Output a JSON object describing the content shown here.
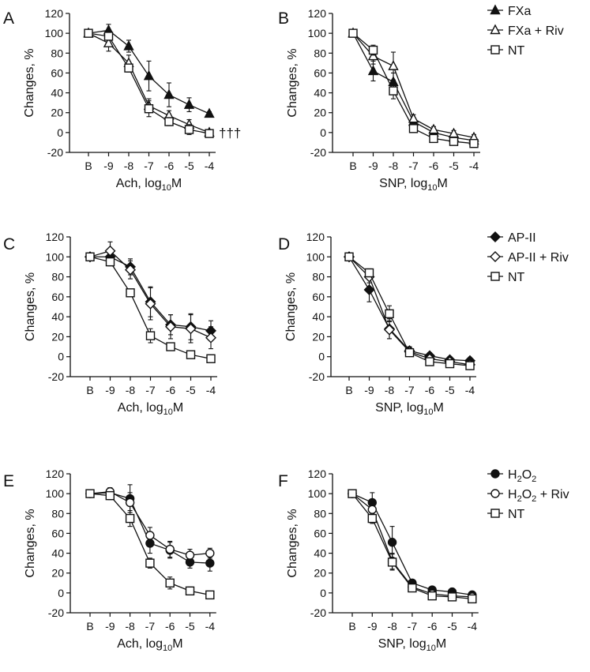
{
  "figure": {
    "x_categories": [
      "B",
      "-9",
      "-8",
      "-7",
      "-6",
      "-5",
      "-4"
    ],
    "y_ticks": [
      -20,
      0,
      20,
      40,
      60,
      80,
      100,
      120
    ],
    "ylim": [
      -20,
      120
    ],
    "ylabel": "Changes, %"
  },
  "legends": [
    {
      "for_row": 0,
      "entries": [
        {
          "label": "FXa",
          "marker": "triangle-filled"
        },
        {
          "label": "FXa + Riv",
          "marker": "triangle-open"
        },
        {
          "label": "NT",
          "marker": "square-open"
        }
      ]
    },
    {
      "for_row": 1,
      "entries": [
        {
          "label": "AP-II",
          "marker": "diamond-filled"
        },
        {
          "label": "AP-II + Riv",
          "marker": "diamond-open"
        },
        {
          "label": "NT",
          "marker": "square-open"
        }
      ]
    },
    {
      "for_row": 2,
      "entries": [
        {
          "label": "H",
          "sub": "2",
          "mid": "O",
          "sub2": "2",
          "rest": "",
          "marker": "circle-filled"
        },
        {
          "label": "H",
          "sub": "2",
          "mid": "O",
          "sub2": "2",
          "rest": " + Riv",
          "marker": "circle-open"
        },
        {
          "label": "NT",
          "marker": "square-open"
        }
      ]
    }
  ],
  "chart_data": [
    {
      "panel": "A",
      "type": "line",
      "xlabel": "Ach, log10M",
      "xlabel_main": "Ach, log",
      "xlabel_sub": "10",
      "xlabel_tail": "M",
      "annotation": "†††",
      "categories": [
        "B",
        "-9",
        "-8",
        "-7",
        "-6",
        "-5",
        "-4"
      ],
      "series": [
        {
          "name": "FXa",
          "marker": "triangle-filled",
          "values": [
            100,
            103,
            87,
            57,
            38,
            28,
            19
          ],
          "err": [
            0,
            6,
            6,
            15,
            12,
            7,
            2
          ]
        },
        {
          "name": "FXa + Riv",
          "marker": "triangle-open",
          "values": [
            100,
            90,
            70,
            27,
            17,
            8,
            0
          ],
          "err": [
            0,
            8,
            8,
            7,
            5,
            5,
            3
          ]
        },
        {
          "name": "NT",
          "marker": "square-open",
          "values": [
            100,
            97,
            65,
            24,
            11,
            3,
            -1
          ],
          "err": [
            0,
            3,
            4,
            8,
            4,
            5,
            3
          ]
        }
      ]
    },
    {
      "panel": "B",
      "type": "line",
      "xlabel": "SNP, log10M",
      "xlabel_main": "SNP, log",
      "xlabel_sub": "10",
      "xlabel_tail": "M",
      "categories": [
        "B",
        "-9",
        "-8",
        "-7",
        "-6",
        "-5",
        "-4"
      ],
      "series": [
        {
          "name": "FXa",
          "marker": "triangle-filled",
          "values": [
            100,
            62,
            51,
            11,
            0,
            -5,
            -8
          ],
          "err": [
            0,
            10,
            9,
            4,
            3,
            3,
            3
          ]
        },
        {
          "name": "FXa + Riv",
          "marker": "triangle-open",
          "values": [
            100,
            77,
            67,
            14,
            3,
            -1,
            -5
          ],
          "err": [
            0,
            8,
            14,
            4,
            3,
            3,
            3
          ]
        },
        {
          "name": "NT",
          "marker": "square-open",
          "values": [
            100,
            83,
            42,
            4,
            -6,
            -9,
            -11
          ],
          "err": [
            0,
            5,
            8,
            3,
            3,
            3,
            3
          ]
        }
      ]
    },
    {
      "panel": "C",
      "type": "line",
      "xlabel": "Ach, log10M",
      "xlabel_main": "Ach, log",
      "xlabel_sub": "10",
      "xlabel_tail": "M",
      "categories": [
        "B",
        "-9",
        "-8",
        "-7",
        "-6",
        "-5",
        "-4"
      ],
      "series": [
        {
          "name": "AP-II",
          "marker": "diamond-filled",
          "values": [
            100,
            100,
            90,
            55,
            32,
            30,
            26
          ],
          "err": [
            0,
            8,
            8,
            15,
            10,
            13,
            10
          ]
        },
        {
          "name": "AP-II + Riv",
          "marker": "diamond-open",
          "values": [
            100,
            106,
            87,
            53,
            30,
            28,
            19
          ],
          "err": [
            0,
            9,
            9,
            16,
            12,
            14,
            11
          ]
        },
        {
          "name": "NT",
          "marker": "square-open",
          "values": [
            100,
            95,
            64,
            21,
            10,
            2,
            -2
          ],
          "err": [
            0,
            4,
            3,
            7,
            3,
            3,
            2
          ]
        }
      ]
    },
    {
      "panel": "D",
      "type": "line",
      "xlabel": "SNP, log10M",
      "xlabel_main": "SNP, log",
      "xlabel_sub": "10",
      "xlabel_tail": "M",
      "categories": [
        "B",
        "-9",
        "-8",
        "-7",
        "-6",
        "-5",
        "-4"
      ],
      "series": [
        {
          "name": "AP-II",
          "marker": "diamond-filled",
          "values": [
            100,
            67,
            28,
            6,
            1,
            -3,
            -4
          ],
          "err": [
            0,
            12,
            10,
            4,
            3,
            3,
            2
          ]
        },
        {
          "name": "AP-II + Riv",
          "marker": "diamond-open",
          "values": [
            100,
            80,
            27,
            5,
            -2,
            -5,
            -8
          ],
          "err": [
            0,
            6,
            9,
            4,
            3,
            3,
            3
          ]
        },
        {
          "name": "NT",
          "marker": "square-open",
          "values": [
            100,
            84,
            43,
            4,
            -5,
            -7,
            -9
          ],
          "err": [
            0,
            4,
            8,
            3,
            3,
            3,
            3
          ]
        }
      ]
    },
    {
      "panel": "E",
      "type": "line",
      "xlabel": "Ach, log10M",
      "xlabel_main": "Ach, log",
      "xlabel_sub": "10",
      "xlabel_tail": "M",
      "categories": [
        "B",
        "-9",
        "-8",
        "-7",
        "-6",
        "-5",
        "-4"
      ],
      "series": [
        {
          "name": "H2O2",
          "marker": "circle-filled",
          "values": [
            100,
            101,
            95,
            50,
            43,
            31,
            30
          ],
          "err": [
            0,
            4,
            14,
            10,
            8,
            6,
            8
          ]
        },
        {
          "name": "H2O2 + Riv",
          "marker": "circle-open",
          "values": [
            100,
            102,
            91,
            58,
            44,
            38,
            40
          ],
          "err": [
            0,
            4,
            10,
            8,
            8,
            6,
            5
          ]
        },
        {
          "name": "NT",
          "marker": "square-open",
          "values": [
            100,
            98,
            75,
            30,
            10,
            2,
            -2
          ],
          "err": [
            0,
            4,
            8,
            5,
            6,
            4,
            3
          ]
        }
      ]
    },
    {
      "panel": "F",
      "type": "line",
      "xlabel": "SNP, log10M",
      "xlabel_main": "SNP, log",
      "xlabel_sub": "10",
      "xlabel_tail": "M",
      "categories": [
        "B",
        "-9",
        "-8",
        "-7",
        "-6",
        "-5",
        "-4"
      ],
      "series": [
        {
          "name": "H2O2",
          "marker": "circle-filled",
          "values": [
            100,
            91,
            51,
            10,
            3,
            1,
            -2
          ],
          "err": [
            0,
            10,
            16,
            3,
            2,
            2,
            2
          ]
        },
        {
          "name": "H2O2 + Riv",
          "marker": "circle-open",
          "values": [
            100,
            84,
            32,
            6,
            -1,
            -3,
            -4
          ],
          "err": [
            0,
            8,
            8,
            3,
            2,
            2,
            3
          ]
        },
        {
          "name": "NT",
          "marker": "square-open",
          "values": [
            100,
            75,
            31,
            5,
            -3,
            -4,
            -6
          ],
          "err": [
            0,
            5,
            8,
            3,
            2,
            2,
            3
          ]
        }
      ]
    }
  ]
}
